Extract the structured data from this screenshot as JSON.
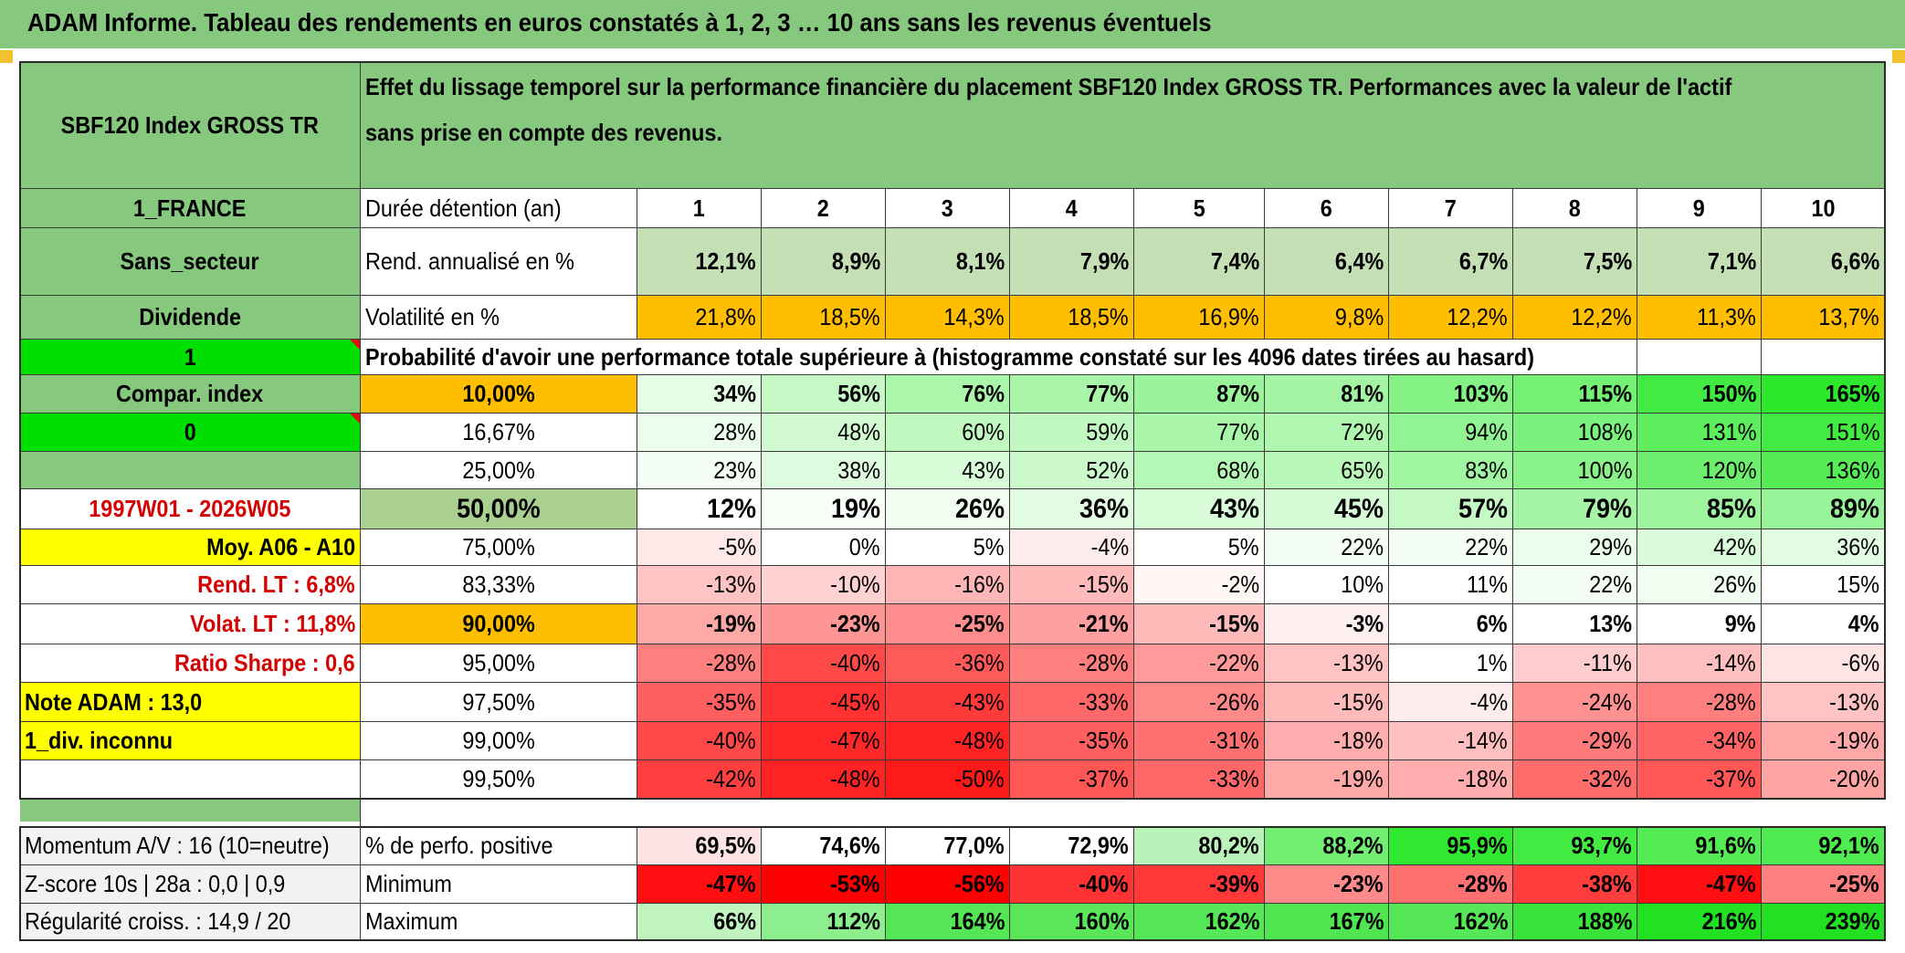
{
  "title": "ADAM Informe. Tableau des rendements en euros constatés à 1, 2, 3 … 10 ans sans les revenus éventuels",
  "header": {
    "index_name": "SBF120 Index GROSS TR",
    "description": "Effet du lissage temporel sur la performance financière du placement SBF120 Index GROSS TR. Performances avec la valeur de l'actif sans prise en compte des revenus."
  },
  "left_panel": {
    "country": "1_FRANCE",
    "sector": "Sans_secteur",
    "dividend_label": "Dividende",
    "dividend_value": "1",
    "compar_label": "Compar. index",
    "compar_value": "0",
    "period": "1997W01 - 2026W05",
    "moy": "Moy. A06 - A10",
    "rend_lt": "Rend. LT :   6,8%",
    "volat_lt": "Volat. LT :   11,8%",
    "sharpe": "Ratio Sharpe :   0,6",
    "note": "Note ADAM : 13,0",
    "div": "1_div. inconnu",
    "momentum": "Momentum A/V : 16 (10=neutre)",
    "zscore": "Z-score 10s | 28a : 0,0 | 0,9",
    "regularite": "Régularité croiss. : 14,9 / 20"
  },
  "colors": {
    "green_header": "#86c97e",
    "bright_green": "#00e000",
    "yellow": "#ffff00",
    "orange": "#ffbf00",
    "light_green": "#c4dfb4",
    "red_text": "#d40000"
  },
  "table": {
    "duration_label": "Durée détention (an)",
    "years": [
      "1",
      "2",
      "3",
      "4",
      "5",
      "6",
      "7",
      "8",
      "9",
      "10"
    ],
    "rend_label": "Rend. annualisé en %",
    "rend_values": [
      "12,1%",
      "8,9%",
      "8,1%",
      "7,9%",
      "7,4%",
      "6,4%",
      "6,7%",
      "7,5%",
      "7,1%",
      "6,6%"
    ],
    "vol_label": "Volatilité en %",
    "vol_values": [
      "21,8%",
      "18,5%",
      "14,3%",
      "18,5%",
      "16,9%",
      "9,8%",
      "12,2%",
      "12,2%",
      "11,3%",
      "13,7%"
    ],
    "prob_label": "Probabilité d'avoir une performance totale supérieure à (histogramme constaté sur les 4096 dates tirées au hasard)",
    "prob_rows": [
      {
        "p": "10,00%",
        "v": [
          "34%",
          "56%",
          "76%",
          "77%",
          "87%",
          "81%",
          "103%",
          "115%",
          "150%",
          "165%"
        ]
      },
      {
        "p": "16,67%",
        "v": [
          "28%",
          "48%",
          "60%",
          "59%",
          "77%",
          "72%",
          "94%",
          "108%",
          "131%",
          "151%"
        ]
      },
      {
        "p": "25,00%",
        "v": [
          "23%",
          "38%",
          "43%",
          "52%",
          "68%",
          "65%",
          "83%",
          "100%",
          "120%",
          "136%"
        ]
      },
      {
        "p": "50,00%",
        "v": [
          "12%",
          "19%",
          "26%",
          "36%",
          "43%",
          "45%",
          "57%",
          "79%",
          "85%",
          "89%"
        ]
      },
      {
        "p": "75,00%",
        "v": [
          "-5%",
          "0%",
          "5%",
          "-4%",
          "5%",
          "22%",
          "22%",
          "29%",
          "42%",
          "36%"
        ]
      },
      {
        "p": "83,33%",
        "v": [
          "-13%",
          "-10%",
          "-16%",
          "-15%",
          "-2%",
          "10%",
          "11%",
          "22%",
          "26%",
          "15%"
        ]
      },
      {
        "p": "90,00%",
        "v": [
          "-19%",
          "-23%",
          "-25%",
          "-21%",
          "-15%",
          "-3%",
          "6%",
          "13%",
          "9%",
          "4%"
        ]
      },
      {
        "p": "95,00%",
        "v": [
          "-28%",
          "-40%",
          "-36%",
          "-28%",
          "-22%",
          "-13%",
          "1%",
          "-11%",
          "-14%",
          "-6%"
        ]
      },
      {
        "p": "97,50%",
        "v": [
          "-35%",
          "-45%",
          "-43%",
          "-33%",
          "-26%",
          "-15%",
          "-4%",
          "-24%",
          "-28%",
          "-13%"
        ]
      },
      {
        "p": "99,00%",
        "v": [
          "-40%",
          "-47%",
          "-48%",
          "-35%",
          "-31%",
          "-18%",
          "-14%",
          "-29%",
          "-34%",
          "-19%"
        ]
      },
      {
        "p": "99,50%",
        "v": [
          "-42%",
          "-48%",
          "-50%",
          "-37%",
          "-33%",
          "-19%",
          "-18%",
          "-32%",
          "-37%",
          "-20%"
        ]
      }
    ],
    "pos_label": "% de perfo. positive",
    "pos_values": [
      "69,5%",
      "74,6%",
      "77,0%",
      "72,9%",
      "80,2%",
      "88,2%",
      "95,9%",
      "93,7%",
      "91,6%",
      "92,1%"
    ],
    "min_label": "Minimum",
    "min_values": [
      "-47%",
      "-53%",
      "-56%",
      "-40%",
      "-39%",
      "-23%",
      "-28%",
      "-38%",
      "-47%",
      "-25%"
    ],
    "max_label": "Maximum",
    "max_values": [
      "66%",
      "112%",
      "164%",
      "160%",
      "162%",
      "167%",
      "162%",
      "188%",
      "216%",
      "239%"
    ]
  }
}
